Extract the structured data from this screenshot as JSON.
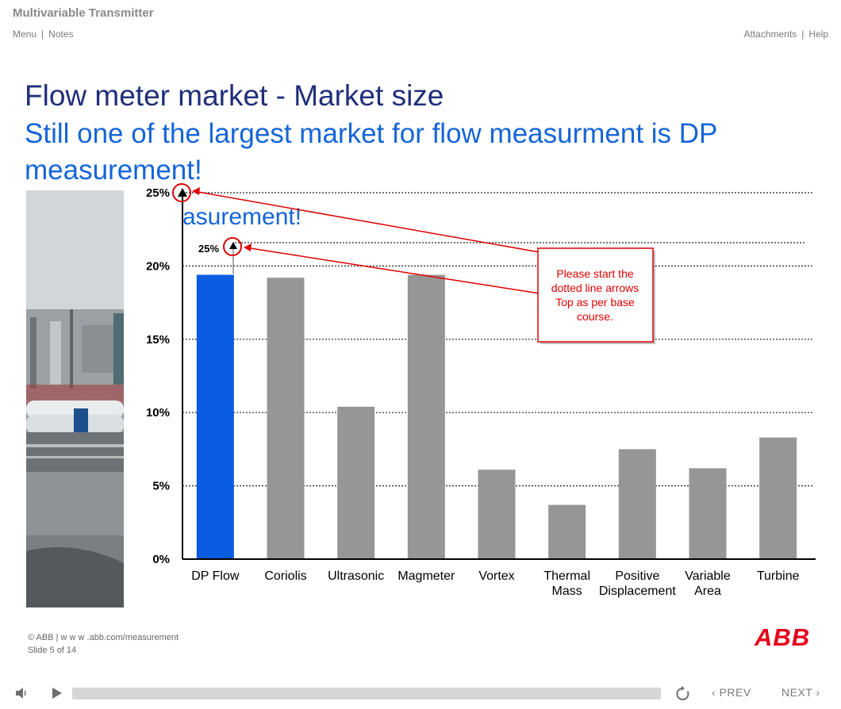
{
  "app": {
    "title": "Multivariable Transmitter"
  },
  "nav": {
    "menu": "Menu",
    "notes": "Notes",
    "attachments": "Attachments",
    "help": "Help",
    "sep": "|"
  },
  "slide": {
    "title": "Flow meter market - Market size",
    "subtitle": "Still one of the largest market for flow measurment is DP measurement!",
    "ghost_text": "asurement!"
  },
  "chart_data": {
    "type": "bar",
    "categories": [
      "DP Flow",
      "Coriolis",
      "Ultrasonic",
      "Magmeter",
      "Vortex",
      "Thermal Mass",
      "Positive Displacement",
      "Variable Area",
      "Turbine"
    ],
    "category_lines": [
      [
        "DP Flow"
      ],
      [
        "Coriolis"
      ],
      [
        "Ultrasonic"
      ],
      [
        "Magmeter"
      ],
      [
        "Vortex"
      ],
      [
        "Thermal",
        "Mass"
      ],
      [
        "Positive",
        "Displacement"
      ],
      [
        "Variable",
        "Area"
      ],
      [
        "Turbine"
      ]
    ],
    "values": [
      19.4,
      19.2,
      10.4,
      19.4,
      6.1,
      3.7,
      7.5,
      6.2,
      8.3
    ],
    "highlight_index": 0,
    "colors": {
      "highlight": "#0a5ce0",
      "bar": "#969696",
      "axis": "#000000"
    },
    "yticks": [
      0,
      5,
      10,
      15,
      20,
      25
    ],
    "ytick_labels": [
      "0%",
      "5%",
      "10%",
      "15%",
      "20%",
      "25%"
    ],
    "ylim": [
      0,
      25
    ],
    "grid": "dotted",
    "inner_label": "25%",
    "annotation": "Please start the dotted line arrows Top as per base course.",
    "annotation_lines": [
      "Please start the",
      "dotted line arrows",
      "Top as per base",
      "course."
    ],
    "annotation_color": "#e00000"
  },
  "footer": {
    "copyright": "© ABB | w w w .abb.com/measurement",
    "slide_counter": "Slide 5 of 14",
    "logo": "ABB"
  },
  "player": {
    "prev": "PREV",
    "next": "NEXT",
    "prev_chevron": "‹",
    "next_chevron": "›"
  }
}
